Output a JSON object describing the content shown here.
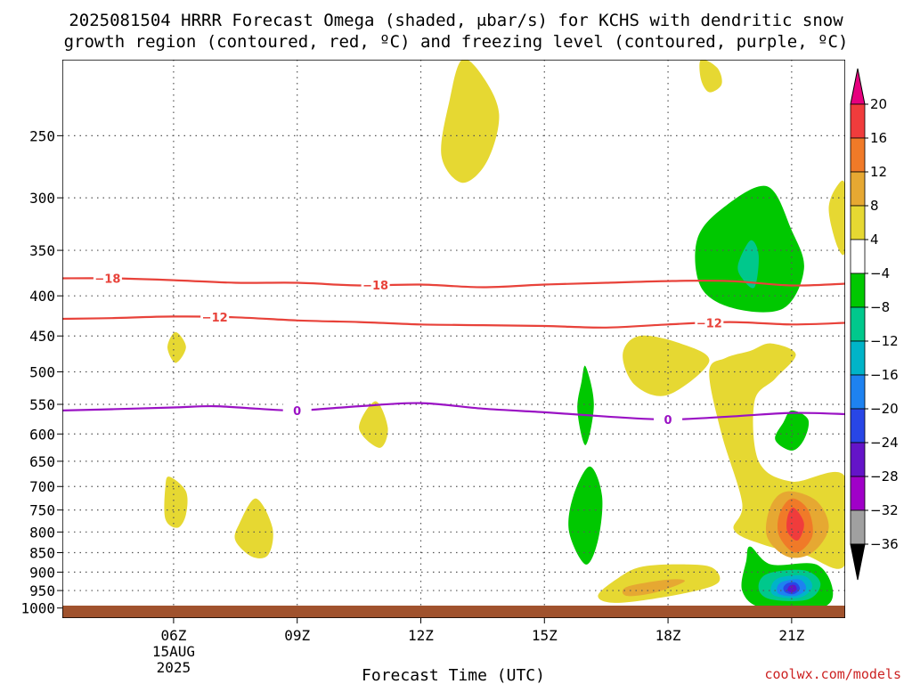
{
  "title": {
    "line1": "2025081504 HRRR Forecast Omega (shaded, μbar/s) for KCHS with dendritic snow",
    "line2": "growth region (contoured, red, ºC) and freezing level (contoured, purple, ºC)"
  },
  "credit": "coolwx.com/models",
  "colors": {
    "dendritic_contour": "#e8423a",
    "freezing_contour": "#9a12c4",
    "ground": "#a0522d",
    "grid": "#555555"
  },
  "colorbar": {
    "labels": [
      "20",
      "16",
      "12",
      "8",
      "4",
      "−4",
      "−8",
      "−12",
      "−16",
      "−20",
      "−24",
      "−28",
      "−32",
      "−36"
    ],
    "bins": [
      {
        "lo": 16,
        "hi": 20,
        "color": "#f03c3c"
      },
      {
        "lo": 12,
        "hi": 16,
        "color": "#f07a28"
      },
      {
        "lo": 8,
        "hi": 12,
        "color": "#e6a832"
      },
      {
        "lo": 4,
        "hi": 8,
        "color": "#e6d832"
      },
      {
        "lo": -4,
        "hi": 4,
        "color": "#ffffff"
      },
      {
        "lo": -8,
        "hi": -4,
        "color": "#00c800"
      },
      {
        "lo": -12,
        "hi": -8,
        "color": "#00c88c"
      },
      {
        "lo": -16,
        "hi": -12,
        "color": "#00b4c8"
      },
      {
        "lo": -20,
        "hi": -16,
        "color": "#1e82f0"
      },
      {
        "lo": -24,
        "hi": -20,
        "color": "#2846e6"
      },
      {
        "lo": -28,
        "hi": -24,
        "color": "#6414c8"
      },
      {
        "lo": -32,
        "hi": -28,
        "color": "#a000c8"
      },
      {
        "lo": -36,
        "hi": -32,
        "color": "#a0a0a0"
      }
    ],
    "top_arrow_color": "#e6007e",
    "bottom_arrow_color": "#000000"
  },
  "chart_data": {
    "type": "heatmap",
    "title": "2025081504 HRRR Forecast Omega (shaded, μbar/s) for KCHS with dendritic snow growth region (contoured, red, ºC) and freezing level (contoured, purple, ºC)",
    "xlabel": "Forecast Time (UTC)",
    "ylabel": "",
    "xlim": [
      3.3,
      22.3
    ],
    "x_ticks": [
      {
        "hour": 6,
        "label": "06Z",
        "sub1": "15AUG",
        "sub2": "2025"
      },
      {
        "hour": 9,
        "label": "09Z"
      },
      {
        "hour": 12,
        "label": "12Z"
      },
      {
        "hour": 15,
        "label": "15Z"
      },
      {
        "hour": 18,
        "label": "18Z"
      },
      {
        "hour": 21,
        "label": "21Z"
      }
    ],
    "y_scale": "pressure (log), inverted",
    "ylim": [
      1030,
      200
    ],
    "y_ticks": [
      250,
      300,
      350,
      400,
      450,
      500,
      550,
      600,
      650,
      700,
      750,
      800,
      850,
      900,
      950,
      1000
    ],
    "grid": "dotted at ticks",
    "omega_regions": [
      {
        "value": "4 to 8",
        "color": "#e6d832",
        "points": [
          [
            13.0,
            200
          ],
          [
            13.5,
            210
          ],
          [
            13.9,
            235
          ],
          [
            13.6,
            270
          ],
          [
            13.0,
            287
          ],
          [
            12.5,
            265
          ],
          [
            12.7,
            225
          ]
        ]
      },
      {
        "value": "4 to 8",
        "color": "#e6d832",
        "points": [
          [
            18.8,
            200
          ],
          [
            19.2,
            205
          ],
          [
            19.3,
            215
          ],
          [
            19.0,
            220
          ],
          [
            18.8,
            212
          ]
        ]
      },
      {
        "value": "4 to 8",
        "color": "#e6d832",
        "points": [
          [
            22.3,
            290
          ],
          [
            22.1,
            290
          ],
          [
            21.9,
            310
          ],
          [
            22.1,
            345
          ],
          [
            22.3,
            350
          ]
        ]
      },
      {
        "value": "4 to 8",
        "color": "#e6d832",
        "points": [
          [
            6.05,
            445
          ],
          [
            6.3,
            465
          ],
          [
            6.05,
            487
          ],
          [
            5.85,
            465
          ]
        ]
      },
      {
        "value": "4 to 8",
        "color": "#e6d832",
        "points": [
          [
            10.9,
            545
          ],
          [
            11.2,
            590
          ],
          [
            11.0,
            625
          ],
          [
            10.5,
            590
          ]
        ]
      },
      {
        "value": "4 to 8",
        "color": "#e6d832",
        "points": [
          [
            5.9,
            680
          ],
          [
            6.3,
            710
          ],
          [
            6.3,
            760
          ],
          [
            6.1,
            790
          ],
          [
            5.8,
            770
          ],
          [
            5.8,
            700
          ]
        ]
      },
      {
        "value": "4 to 8",
        "color": "#e6d832",
        "points": [
          [
            8.0,
            725
          ],
          [
            8.4,
            790
          ],
          [
            8.3,
            855
          ],
          [
            7.9,
            860
          ],
          [
            7.5,
            820
          ],
          [
            7.6,
            780
          ]
        ]
      },
      {
        "value": "4 to 8",
        "color": "#e6d832",
        "points": [
          [
            17.3,
            450
          ],
          [
            18.3,
            460
          ],
          [
            19.0,
            485
          ],
          [
            18.0,
            535
          ],
          [
            17.2,
            520
          ],
          [
            16.9,
            475
          ]
        ]
      },
      {
        "value": "4 to 8",
        "color": "#e6d832",
        "points": [
          [
            20.5,
            460
          ],
          [
            21.1,
            475
          ],
          [
            20.6,
            510
          ],
          [
            20.1,
            545
          ],
          [
            20.2,
            650
          ],
          [
            21.0,
            690
          ],
          [
            22.3,
            680
          ],
          [
            22.3,
            880
          ],
          [
            21.3,
            855
          ],
          [
            20.3,
            830
          ],
          [
            19.6,
            795
          ],
          [
            19.8,
            735
          ],
          [
            19.3,
            600
          ],
          [
            19.0,
            500
          ],
          [
            19.4,
            480
          ],
          [
            20.0,
            470
          ]
        ]
      },
      {
        "value": "4 to 8",
        "color": "#e6d832",
        "points": [
          [
            16.8,
            915
          ],
          [
            17.4,
            885
          ],
          [
            18.5,
            880
          ],
          [
            19.1,
            890
          ],
          [
            19.2,
            930
          ],
          [
            18.3,
            960
          ],
          [
            16.8,
            985
          ],
          [
            16.3,
            965
          ]
        ]
      },
      {
        "value": "8 to 12",
        "color": "#e6a832",
        "points": [
          [
            20.9,
            710
          ],
          [
            21.6,
            730
          ],
          [
            21.9,
            790
          ],
          [
            21.5,
            850
          ],
          [
            20.9,
            860
          ],
          [
            20.4,
            810
          ],
          [
            20.5,
            740
          ]
        ]
      },
      {
        "value": "8 to 12",
        "color": "#e6a832",
        "points": [
          [
            17.0,
            940
          ],
          [
            18.0,
            920
          ],
          [
            18.4,
            925
          ],
          [
            17.7,
            955
          ],
          [
            17.0,
            965
          ]
        ]
      },
      {
        "value": "12 to 16",
        "color": "#f07a28",
        "points": [
          [
            21.0,
            725
          ],
          [
            21.4,
            750
          ],
          [
            21.5,
            810
          ],
          [
            21.1,
            850
          ],
          [
            20.7,
            810
          ],
          [
            20.7,
            760
          ]
        ]
      },
      {
        "value": "16 to 20",
        "color": "#f03c3c",
        "points": [
          [
            21.05,
            745
          ],
          [
            21.3,
            780
          ],
          [
            21.15,
            820
          ],
          [
            20.9,
            800
          ],
          [
            20.9,
            765
          ]
        ]
      },
      {
        "value": "-8 to -4",
        "color": "#00c800",
        "points": [
          [
            20.4,
            290
          ],
          [
            21.0,
            330
          ],
          [
            21.3,
            370
          ],
          [
            20.8,
            415
          ],
          [
            19.6,
            415
          ],
          [
            18.8,
            390
          ],
          [
            18.7,
            340
          ],
          [
            19.3,
            310
          ]
        ]
      },
      {
        "value": "-8 to -4",
        "color": "#00c800",
        "points": [
          [
            16.0,
            492
          ],
          [
            16.2,
            550
          ],
          [
            16.0,
            620
          ],
          [
            15.8,
            560
          ],
          [
            15.9,
            515
          ]
        ]
      },
      {
        "value": "-8 to -4",
        "color": "#00c800",
        "points": [
          [
            21.0,
            560
          ],
          [
            21.4,
            575
          ],
          [
            21.3,
            610
          ],
          [
            21.0,
            630
          ],
          [
            20.6,
            610
          ],
          [
            20.8,
            580
          ]
        ]
      },
      {
        "value": "-8 to -4",
        "color": "#00c800",
        "points": [
          [
            16.1,
            660
          ],
          [
            16.4,
            720
          ],
          [
            16.3,
            820
          ],
          [
            16.0,
            880
          ],
          [
            15.6,
            800
          ],
          [
            15.7,
            720
          ]
        ]
      },
      {
        "value": "-8 to -4",
        "color": "#00c800",
        "points": [
          [
            20.0,
            835
          ],
          [
            20.5,
            880
          ],
          [
            21.6,
            880
          ],
          [
            22.0,
            950
          ],
          [
            21.7,
            1000
          ],
          [
            20.3,
            1000
          ],
          [
            19.8,
            950
          ],
          [
            19.9,
            870
          ]
        ]
      },
      {
        "value": "-12 to -8",
        "color": "#00c88c",
        "points": [
          [
            20.0,
            340
          ],
          [
            20.2,
            355
          ],
          [
            20.1,
            390
          ],
          [
            19.8,
            380
          ],
          [
            19.7,
            365
          ]
        ]
      },
      {
        "value": "-12 to -8",
        "color": "#00c88c",
        "points": [
          [
            20.4,
            905
          ],
          [
            21.3,
            895
          ],
          [
            21.7,
            930
          ],
          [
            21.4,
            975
          ],
          [
            20.5,
            975
          ],
          [
            20.2,
            945
          ]
        ]
      },
      {
        "value": "-16 to -12",
        "color": "#00b4c8",
        "points": [
          [
            20.7,
            915
          ],
          [
            21.3,
            910
          ],
          [
            21.5,
            940
          ],
          [
            21.2,
            970
          ],
          [
            20.6,
            965
          ],
          [
            20.5,
            940
          ]
        ]
      },
      {
        "value": "-20 to -16",
        "color": "#1e82f0",
        "points": [
          [
            20.8,
            925
          ],
          [
            21.2,
            920
          ],
          [
            21.35,
            945
          ],
          [
            21.1,
            965
          ],
          [
            20.7,
            960
          ],
          [
            20.65,
            940
          ]
        ]
      },
      {
        "value": "-24 to -20",
        "color": "#2846e6",
        "points": [
          [
            20.9,
            930
          ],
          [
            21.1,
            928
          ],
          [
            21.2,
            945
          ],
          [
            21.05,
            960
          ],
          [
            20.85,
            955
          ],
          [
            20.8,
            942
          ]
        ]
      },
      {
        "value": "-28 to -24",
        "color": "#6414c8",
        "points": [
          [
            20.95,
            937
          ],
          [
            21.08,
            935
          ],
          [
            21.12,
            948
          ],
          [
            21.02,
            955
          ],
          [
            20.9,
            950
          ]
        ]
      }
    ],
    "contours": [
      {
        "name": "-18",
        "kind": "dendritic",
        "label_hours": [
          4.4,
          10.9
        ],
        "points": [
          [
            3.3,
            380
          ],
          [
            4.5,
            380
          ],
          [
            6,
            382
          ],
          [
            7.5,
            385
          ],
          [
            9,
            385
          ],
          [
            10.5,
            388
          ],
          [
            12,
            387
          ],
          [
            13.5,
            390
          ],
          [
            15,
            387
          ],
          [
            16.5,
            385
          ],
          [
            18,
            383
          ],
          [
            19.5,
            383
          ],
          [
            21,
            388
          ],
          [
            22.3,
            386
          ]
        ]
      },
      {
        "name": "-12",
        "kind": "dendritic",
        "label_hours": [
          7.0,
          19.0
        ],
        "points": [
          [
            3.3,
            428
          ],
          [
            4.5,
            427
          ],
          [
            6,
            425
          ],
          [
            7.5,
            426
          ],
          [
            9,
            430
          ],
          [
            10.5,
            432
          ],
          [
            12,
            435
          ],
          [
            13.5,
            436
          ],
          [
            15,
            437
          ],
          [
            16.5,
            439
          ],
          [
            18,
            435
          ],
          [
            19.5,
            432
          ],
          [
            21,
            435
          ],
          [
            22.3,
            433
          ]
        ]
      },
      {
        "name": "0",
        "kind": "freezing",
        "label_hours": [
          9.0,
          18.0
        ],
        "points": [
          [
            3.3,
            560
          ],
          [
            4.5,
            558
          ],
          [
            6,
            555
          ],
          [
            7,
            553
          ],
          [
            8,
            557
          ],
          [
            9,
            560
          ],
          [
            10.5,
            553
          ],
          [
            12,
            548
          ],
          [
            13.5,
            557
          ],
          [
            15,
            563
          ],
          [
            16.5,
            570
          ],
          [
            18,
            575
          ],
          [
            19.5,
            570
          ],
          [
            21,
            564
          ],
          [
            22.3,
            566
          ]
        ]
      }
    ]
  }
}
